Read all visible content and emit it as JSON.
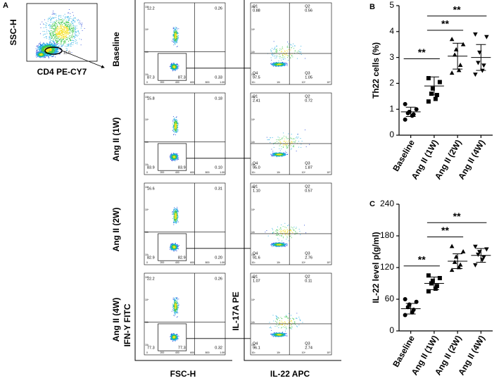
{
  "panel_labels": [
    "A",
    "B",
    "C"
  ],
  "gating": {
    "y_label": "SSC-H",
    "x_label": "CD4 PE-CY7",
    "gate_value": "15.0"
  },
  "fsc_axis_label": "FSC-H",
  "ifn_axis_label": "IFN-Y FITC",
  "il17_axis_label": "IL-17A PE",
  "il22_axis_label": "IL-22 APC",
  "quadrant_names": [
    "Q1",
    "Q2",
    "Q3",
    "Q4"
  ],
  "flow_linear_ticks": [
    "0",
    "200",
    "400",
    "600",
    "800",
    "1.0K"
  ],
  "flow_log_ticks": [
    "10²",
    "10³",
    "10⁴",
    "10⁵"
  ],
  "rows": [
    {
      "label": "Baseline",
      "fsc": {
        "ul": "12.2",
        "ur": "0.26",
        "ll": "87.3",
        "gate": "87.3",
        "lr": "0.33"
      },
      "il": {
        "q1": "0.88",
        "q2": "0.56",
        "q4": "97.5",
        "q3": "1.05"
      }
    },
    {
      "label": "Ang II (1W)",
      "fsc": {
        "ul": "15.8",
        "ur": "0.18",
        "ll": "83.9",
        "gate": "83.9",
        "lr": "0.10"
      },
      "il": {
        "q1": "2.41",
        "q2": "0.72",
        "q4": "95.0",
        "q3": "1.87"
      }
    },
    {
      "label": "Ang II (2W)",
      "fsc": {
        "ul": "16.6",
        "ur": "0.31",
        "ll": "82.9",
        "gate": "82.9",
        "lr": "0.20"
      },
      "il": {
        "q1": "1.10",
        "q2": "0.57",
        "q4": "91.6",
        "q3": "2.76"
      }
    },
    {
      "label": "Ang II (4W)",
      "fsc": {
        "ul": "22.2",
        "ur": "0.26",
        "ll": "77.3",
        "gate": "77.3",
        "lr": "0.32"
      },
      "il": {
        "q1": "1.07",
        "q2": "0.11",
        "q4": "96.1",
        "q3": "2.74"
      }
    }
  ],
  "chart_data": [
    {
      "type": "dot",
      "y_label": "Th22 cells (%)",
      "categories": [
        "Baseline",
        "Ang II (1W)",
        "Ang II (2W)",
        "Ang II (4W)"
      ],
      "markers": [
        "circle",
        "square",
        "triangle",
        "triangle-down"
      ],
      "color": "#000000",
      "points": [
        [
          0.6,
          0.75,
          0.8,
          0.85,
          0.9,
          1.0,
          1.2
        ],
        [
          1.3,
          1.4,
          1.55,
          1.6,
          1.8,
          2.05,
          2.2
        ],
        [
          2.4,
          2.5,
          2.7,
          3.1,
          3.3,
          3.5,
          3.7
        ],
        [
          2.35,
          2.5,
          2.7,
          2.8,
          3.2,
          3.8,
          3.9
        ]
      ],
      "means": [
        0.9,
        1.9,
        3.05,
        3.0
      ],
      "sd": [
        0.18,
        0.35,
        0.5,
        0.5
      ],
      "ylim": [
        0,
        5
      ],
      "yticks": [
        0,
        1,
        2,
        3,
        4,
        5
      ],
      "significance": [
        {
          "from": 0,
          "to": 1,
          "y": 2.95,
          "label": "**"
        },
        {
          "from": 1,
          "to": 2,
          "y": 4.05,
          "label": "**"
        },
        {
          "from": 1,
          "to": 3,
          "y": 4.6,
          "label": "**"
        }
      ]
    },
    {
      "type": "dot",
      "y_label": "IL-22 level p(g/ml)",
      "categories": [
        "Baseline",
        "Ang II (1W)",
        "Ang II (2W)",
        "Ang II (4W)"
      ],
      "markers": [
        "circle",
        "square",
        "triangle",
        "triangle-down"
      ],
      "color": "#000000",
      "points": [
        [
          30,
          35,
          40,
          45,
          50,
          55,
          60
        ],
        [
          75,
          80,
          85,
          90,
          95,
          100,
          105
        ],
        [
          115,
          120,
          125,
          130,
          140,
          150,
          160
        ],
        [
          125,
          135,
          140,
          145,
          150,
          155,
          160
        ]
      ],
      "means": [
        42,
        90,
        132,
        143
      ],
      "sd": [
        10,
        12,
        14,
        13
      ],
      "ylim": [
        0,
        240
      ],
      "yticks": [
        0,
        60,
        120,
        180,
        240
      ],
      "significance": [
        {
          "from": 0,
          "to": 1,
          "y": 123,
          "label": "**"
        },
        {
          "from": 1,
          "to": 2,
          "y": 178,
          "label": "**"
        },
        {
          "from": 1,
          "to": 3,
          "y": 205,
          "label": "**"
        }
      ]
    }
  ]
}
